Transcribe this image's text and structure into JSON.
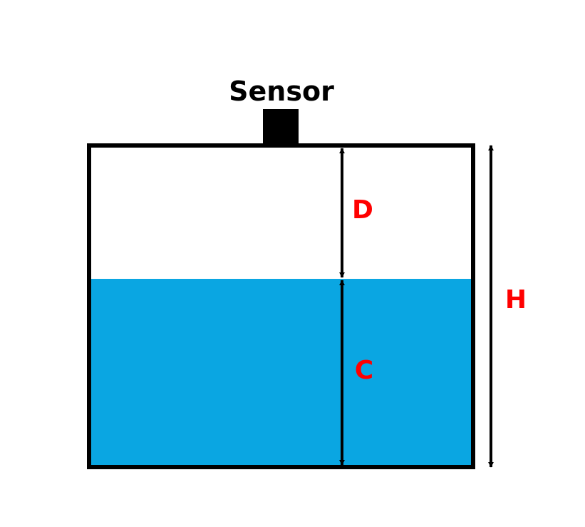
{
  "sensor": {
    "label": "Sensor"
  },
  "dimensions": {
    "distance_label": "D",
    "content_label": "C",
    "height_label": "H"
  },
  "colors": {
    "water": "#0aa6e2",
    "outline": "#000000",
    "dimension_text": "#ff0000"
  }
}
